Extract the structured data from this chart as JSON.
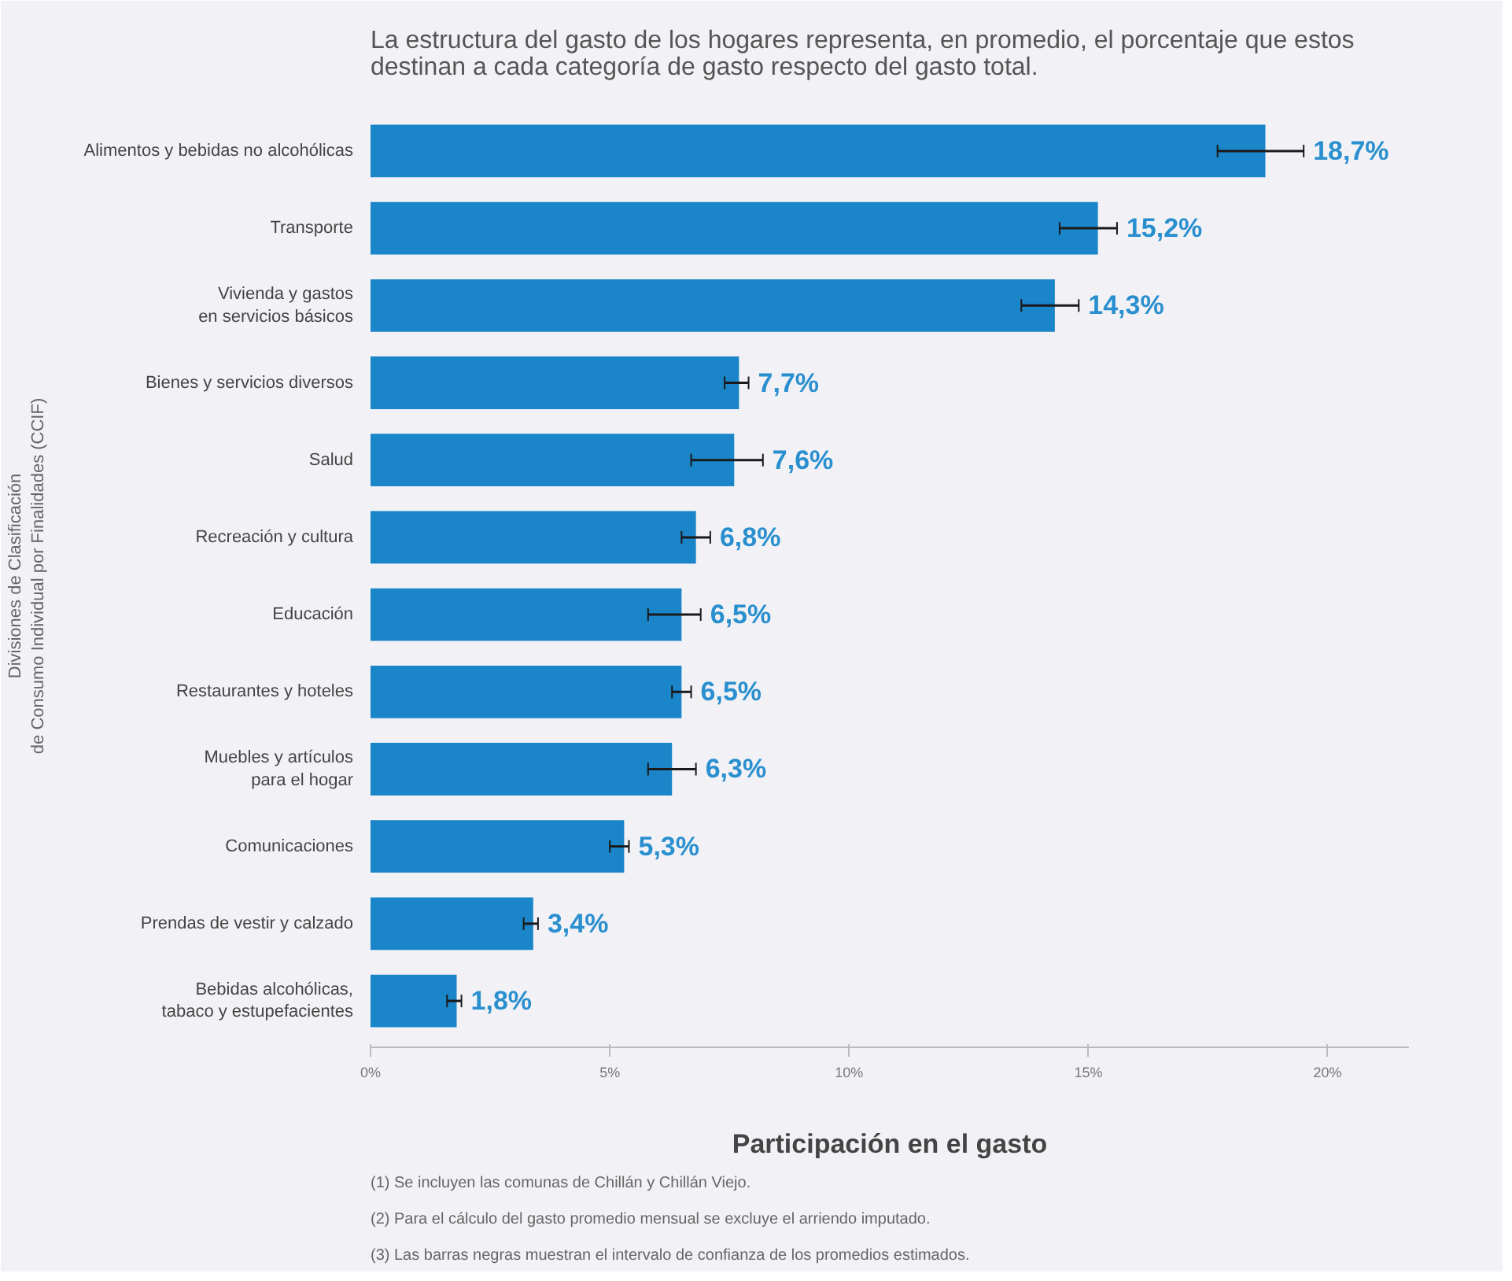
{
  "chart_data": {
    "type": "bar",
    "orientation": "horizontal",
    "title": "La estructura del gasto de los hogares representa, en promedio, el porcentaje que estos\ndestinan a cada categoría de gasto respecto del gasto total.",
    "categories": [
      "Alimentos y bebidas no alcohólicas",
      "Transporte",
      "Vivienda y gastos\nen servicios básicos",
      "Bienes y servicios diversos",
      "Salud",
      "Recreación y cultura",
      "Educación",
      "Restaurantes y hoteles",
      "Muebles y artículos\npara el hogar",
      "Comunicaciones",
      "Prendas de vestir y calzado",
      "Bebidas alcohólicas,\ntabaco y estupefacientes"
    ],
    "values": [
      18.7,
      15.2,
      14.3,
      7.7,
      7.6,
      6.8,
      6.5,
      6.5,
      6.3,
      5.3,
      3.4,
      1.8
    ],
    "color": "#1a85c8",
    "errors": [
      [
        17.7,
        19.5
      ],
      [
        14.4,
        15.6
      ],
      [
        13.6,
        14.8
      ],
      [
        7.4,
        7.9
      ],
      [
        6.7,
        8.2
      ],
      [
        6.5,
        7.1
      ],
      [
        5.8,
        6.9
      ],
      [
        6.3,
        6.7
      ],
      [
        5.8,
        6.8
      ],
      [
        5.0,
        5.4
      ],
      [
        3.2,
        3.5
      ],
      [
        1.6,
        1.9
      ]
    ],
    "value_labels": [
      "18,7%",
      "15,2%",
      "14,3%",
      "7,7%",
      "7,6%",
      "6,8%",
      "6,5%",
      "6,5%",
      "6,3%",
      "5,3%",
      "3,4%",
      "1,8%"
    ],
    "xlim": [
      0,
      21.7
    ],
    "xticks": [
      {
        "value": 0,
        "label": "0%"
      },
      {
        "value": 5,
        "label": "5%"
      },
      {
        "value": 10,
        "label": "10%"
      },
      {
        "value": 15,
        "label": "15%"
      },
      {
        "value": 20,
        "label": "20%"
      }
    ],
    "xlabel": "Participación en el gasto",
    "ylabel": "Divisiones de Clasificación\nde Consumo Individual por Finalidades (CCIF)",
    "grid": false,
    "annotations": [
      "(1)  Se incluyen las comunas de Chillán y Chillán Viejo.",
      "(2)  Para el cálculo del gasto promedio mensual se excluye el arriendo imputado.",
      "(3)  Las barras negras muestran el intervalo de confianza de los promedios estimados."
    ]
  }
}
